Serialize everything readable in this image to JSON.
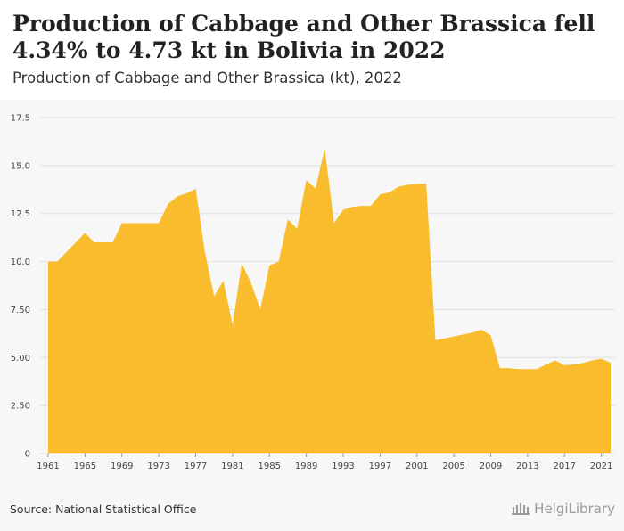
{
  "header": {
    "title": "Production of Cabbage and Other Brassica fell 4.34% to 4.73 kt in Bolivia in 2022",
    "subtitle": "Production of Cabbage and Other Brassica (kt), 2022"
  },
  "footer": {
    "source": "Source: National Statistical Office",
    "logo_text": "HelgiLibrary"
  },
  "colors": {
    "area": "#f9bc2d",
    "background": "#f7f7f7",
    "gridline": "#e0e0e0"
  },
  "chart_data": {
    "type": "area",
    "title": "Production of Cabbage and Other Brassica fell 4.34% to 4.73 kt in Bolivia in 2022",
    "subtitle": "Production of Cabbage and Other Brassica (kt), 2022",
    "xlabel": "",
    "ylabel": "",
    "ylim": [
      0,
      17.5
    ],
    "yticks": [
      "0",
      "2.50",
      "5.00",
      "7.50",
      "10.0",
      "12.5",
      "15.0",
      "17.5"
    ],
    "ytick_values": [
      0,
      2.5,
      5,
      7.5,
      10,
      12.5,
      15,
      17.5
    ],
    "xticks": [
      "1961",
      "1965",
      "1969",
      "1973",
      "1977",
      "1981",
      "1985",
      "1989",
      "1993",
      "1997",
      "2001",
      "2005",
      "2009",
      "2013",
      "2017",
      "2021"
    ],
    "xtick_values": [
      1961,
      1965,
      1969,
      1973,
      1977,
      1981,
      1985,
      1989,
      1993,
      1997,
      2001,
      2005,
      2009,
      2013,
      2017,
      2021
    ],
    "grid": true,
    "series": [
      {
        "x": [
          1961,
          1962,
          1963,
          1964,
          1965,
          1966,
          1967,
          1968,
          1969,
          1970,
          1971,
          1972,
          1973,
          1974,
          1975,
          1976,
          1977,
          1978,
          1979,
          1980,
          1981,
          1982,
          1983,
          1984,
          1985,
          1986,
          1987,
          1988,
          1989,
          1990,
          1991,
          1992,
          1993,
          1994,
          1995,
          1996,
          1997,
          1998,
          1999,
          2000,
          2001,
          2002,
          2003,
          2004,
          2005,
          2006,
          2007,
          2008,
          2009,
          2010,
          2011,
          2012,
          2013,
          2014,
          2015,
          2016,
          2017,
          2018,
          2019,
          2020,
          2021,
          2022
        ],
        "values": [
          10.0,
          10.0,
          10.5,
          11.0,
          11.5,
          11.0,
          11.0,
          11.0,
          12.0,
          12.0,
          12.0,
          12.0,
          12.0,
          13.0,
          13.4,
          13.55,
          13.8,
          10.5,
          8.2,
          9.0,
          6.7,
          9.9,
          8.9,
          7.5,
          9.8,
          10.0,
          12.2,
          11.7,
          14.25,
          13.8,
          15.9,
          12.0,
          12.7,
          12.85,
          12.9,
          12.9,
          13.5,
          13.6,
          13.9,
          14.0,
          14.05,
          14.05,
          5.9,
          6.0,
          6.1,
          6.2,
          6.3,
          6.45,
          6.15,
          4.45,
          4.45,
          4.4,
          4.4,
          4.4,
          4.65,
          4.85,
          4.6,
          4.65,
          4.72,
          4.85,
          4.94,
          4.73
        ]
      }
    ]
  }
}
